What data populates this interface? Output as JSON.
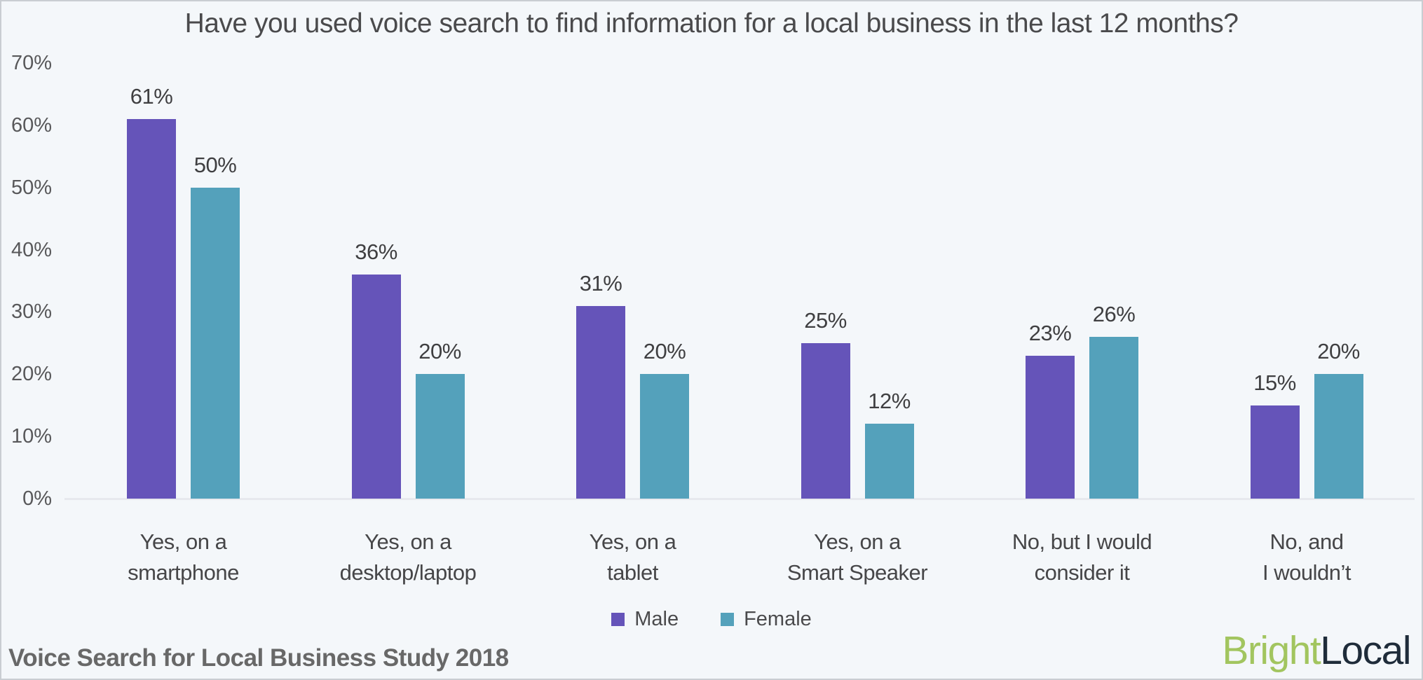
{
  "footer": {
    "source_label": "Voice Search for Local Business Study 2018"
  },
  "logo": {
    "part1": "Bright",
    "part2": "Local",
    "part1_color": "#a2c55f",
    "part2_color": "#1f2c3a"
  },
  "colors": {
    "background": "#f4f7fa",
    "baseline": "#e7e9ee",
    "male": "#6554b9",
    "female": "#54a1bb"
  },
  "chart_data": {
    "type": "bar",
    "title": "Have you used voice search to find information for a local business in the last 12 months?",
    "categories": [
      "Yes, on a smartphone",
      "Yes, on a desktop/laptop",
      "Yes, on a tablet",
      "Yes, on a Smart Speaker",
      "No, but I would consider it",
      "No, and I wouldn’t"
    ],
    "category_lines": [
      [
        "Yes, on a",
        "smartphone"
      ],
      [
        "Yes, on a",
        "desktop/laptop"
      ],
      [
        "Yes, on a",
        "tablet"
      ],
      [
        "Yes, on a",
        "Smart Speaker"
      ],
      [
        "No, but I would",
        "consider it"
      ],
      [
        "No, and",
        "I wouldn’t"
      ]
    ],
    "series": [
      {
        "name": "Male",
        "color": "#6554b9",
        "values": [
          61,
          36,
          31,
          25,
          23,
          15
        ]
      },
      {
        "name": "Female",
        "color": "#54a1bb",
        "values": [
          50,
          20,
          20,
          12,
          26,
          20
        ]
      }
    ],
    "value_suffix": "%",
    "y_ticks": [
      70,
      60,
      50,
      40,
      30,
      20,
      10,
      0
    ],
    "y_tick_suffix": "%",
    "ylim": [
      0,
      70
    ],
    "grid": false,
    "legend_position": "bottom"
  }
}
